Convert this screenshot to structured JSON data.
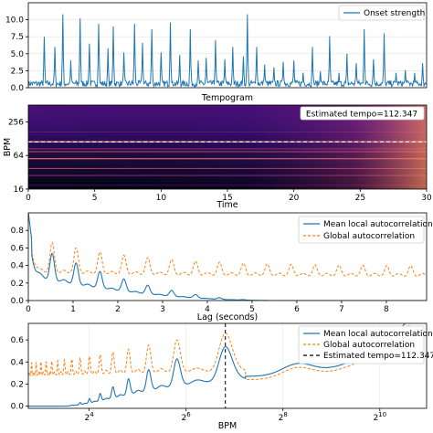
{
  "colors": {
    "mean_line": "#1f77b4",
    "global_line": "#ff7f0e",
    "tempo_line": "#000000",
    "tempogram_line": "#ffffff"
  },
  "chart_data": [
    {
      "type": "line",
      "id": "onset",
      "title": "",
      "xlabel": "",
      "ylabel": "",
      "xlim": [
        0,
        30
      ],
      "ylim": [
        0,
        12.5
      ],
      "yticks": [
        0.0,
        2.5,
        5.0,
        7.5,
        10.0
      ],
      "ytick_labels": [
        "0.0",
        "2.5",
        "5.0",
        "7.5",
        "10.0"
      ],
      "legend": {
        "location": "upper right",
        "entries": [
          "Onset strength"
        ]
      },
      "series": [
        {
          "name": "Onset strength",
          "color": "#1f77b4",
          "baseline": 0.6,
          "peaks": [
            [
              1.2,
              7.5
            ],
            [
              2.0,
              6.0
            ],
            [
              2.6,
              10.8
            ],
            [
              3.2,
              4.0
            ],
            [
              3.9,
              10.2
            ],
            [
              4.6,
              6.5
            ],
            [
              5.3,
              9.4
            ],
            [
              6.0,
              5.8
            ],
            [
              6.4,
              9.0
            ],
            [
              7.2,
              5.2
            ],
            [
              8.0,
              9.4
            ],
            [
              8.6,
              6.6
            ],
            [
              9.3,
              8.6
            ],
            [
              10.0,
              5.2
            ],
            [
              10.7,
              9.6
            ],
            [
              11.4,
              4.8
            ],
            [
              12.2,
              8.6
            ],
            [
              12.8,
              4.0
            ],
            [
              13.4,
              4.4
            ],
            [
              14.1,
              7.0
            ],
            [
              14.8,
              4.2
            ],
            [
              15.4,
              6.0
            ],
            [
              16.2,
              4.6
            ],
            [
              16.5,
              10.8
            ],
            [
              17.2,
              6.0
            ],
            [
              17.8,
              3.4
            ],
            [
              18.5,
              3.0
            ],
            [
              19.2,
              3.8
            ],
            [
              20.0,
              4.0
            ],
            [
              20.7,
              2.2
            ],
            [
              21.4,
              6.0
            ],
            [
              22.0,
              2.4
            ],
            [
              22.7,
              7.6
            ],
            [
              23.4,
              2.2
            ],
            [
              24.0,
              5.0
            ],
            [
              24.7,
              3.6
            ],
            [
              25.3,
              8.6
            ],
            [
              26.0,
              4.2
            ],
            [
              26.8,
              8.0
            ],
            [
              27.7,
              2.2
            ],
            [
              28.4,
              2.6
            ],
            [
              29.1,
              2.2
            ],
            [
              29.7,
              3.6
            ]
          ]
        }
      ]
    },
    {
      "type": "heatmap",
      "id": "tempogram",
      "title": "Tempogram",
      "xlabel": "Time",
      "ylabel": "BPM",
      "xlim": [
        0,
        30
      ],
      "xticks": [
        0,
        5,
        10,
        15,
        20,
        25,
        30
      ],
      "ytick_labels": [
        "256",
        "64",
        "16"
      ],
      "yscale": "log2",
      "ylim": [
        16,
        512
      ],
      "annotation": "Estimated tempo=112.347",
      "tempo_bpm": 112.347
    },
    {
      "type": "line",
      "id": "autocorr_lag",
      "title": "",
      "xlabel": "Lag (seconds)",
      "ylabel": "",
      "xlim": [
        0,
        8.9
      ],
      "ylim": [
        0,
        1.0
      ],
      "xticks": [
        0,
        1,
        2,
        3,
        4,
        5,
        6,
        7,
        8
      ],
      "yticks": [
        0.0,
        0.2,
        0.4,
        0.6,
        0.8
      ],
      "ytick_labels": [
        "0.0",
        "0.2",
        "0.4",
        "0.6",
        "0.8"
      ],
      "legend": {
        "location": "upper right",
        "entries": [
          "Mean local autocorrelation",
          "Global autocorrelation"
        ]
      },
      "beat_period_s": 0.534,
      "series": [
        {
          "name": "Mean local autocorrelation",
          "color": "#1f77b4",
          "style": "solid",
          "start": 1.0,
          "decay_to": 0.0,
          "decay_end_s": 5.5
        },
        {
          "name": "Global autocorrelation",
          "color": "#ff7f0e",
          "style": "dashed",
          "start": 1.0,
          "floor": 0.27,
          "peak_tail": 0.38
        }
      ]
    },
    {
      "type": "line",
      "id": "autocorr_bpm",
      "title": "",
      "xlabel": "BPM",
      "ylabel": "",
      "xscale": "log2",
      "xlim": [
        6.7,
        2000
      ],
      "ylim": [
        -0.02,
        0.75
      ],
      "xticks": [
        16,
        64,
        256,
        1024
      ],
      "xtick_base": "2",
      "xtick_exponents": [
        "4",
        "6",
        "8",
        "10"
      ],
      "yticks": [
        0.0,
        0.2,
        0.4,
        0.6
      ],
      "ytick_labels": [
        "0.0",
        "0.2",
        "0.4",
        "0.6"
      ],
      "legend": {
        "location": "upper right",
        "entries": [
          "Mean local autocorrelation",
          "Global autocorrelation",
          "Estimated tempo=112.347"
        ]
      },
      "tempo_bpm": 112.347,
      "series": [
        {
          "name": "Mean local autocorrelation",
          "color": "#1f77b4",
          "style": "solid"
        },
        {
          "name": "Global autocorrelation",
          "color": "#ff7f0e",
          "style": "dashed"
        },
        {
          "name": "Estimated tempo=112.347",
          "color": "#000000",
          "style": "dashed"
        }
      ]
    }
  ]
}
